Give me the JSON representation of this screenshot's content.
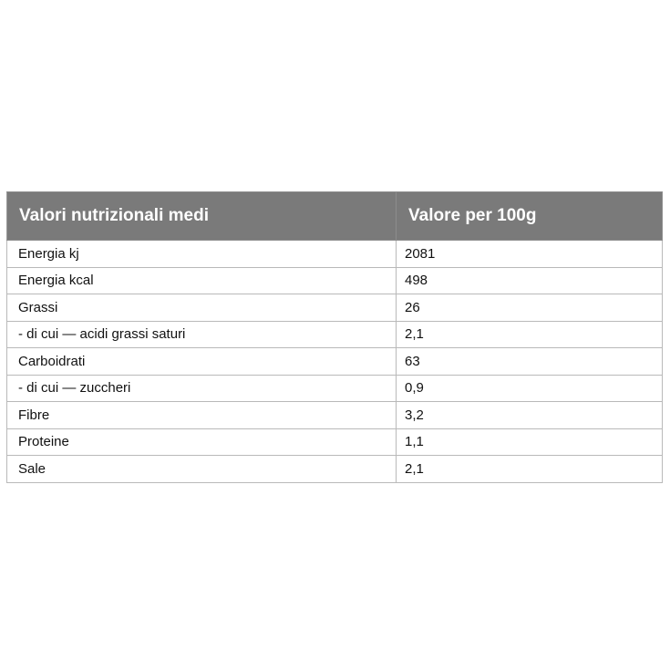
{
  "table": {
    "headers": [
      "Valori nutrizionali medi",
      "Valore per 100g"
    ],
    "rows": [
      {
        "name": "Energia kj",
        "value": "2081"
      },
      {
        "name": "Energia kcal",
        "value": "498"
      },
      {
        "name": "Grassi",
        "value": "26"
      },
      {
        "name": "- di cui — acidi grassi saturi",
        "value": "2,1"
      },
      {
        "name": "Carboidrati",
        "value": "63"
      },
      {
        "name": "- di cui — zuccheri",
        "value": "0,9"
      },
      {
        "name": "Fibre",
        "value": "3,2"
      },
      {
        "name": "Proteine",
        "value": "1,1"
      },
      {
        "name": "Sale",
        "value": "2,1"
      }
    ]
  }
}
